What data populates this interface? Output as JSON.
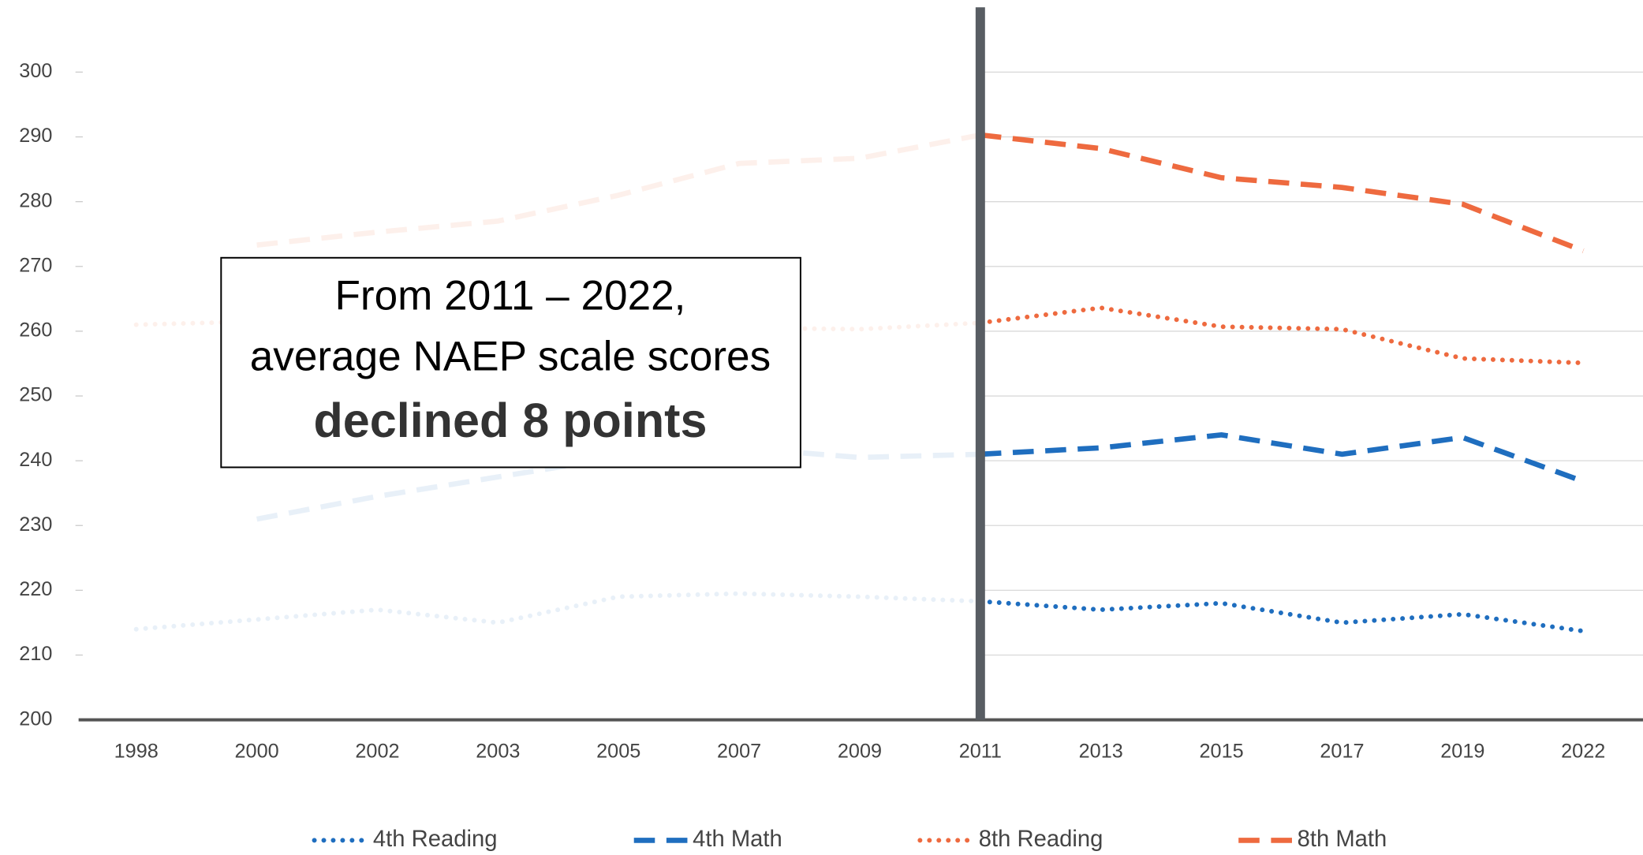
{
  "chart_data": {
    "type": "line",
    "categories": [
      "1998",
      "2000",
      "2002",
      "2003",
      "2005",
      "2007",
      "2009",
      "2011",
      "2013",
      "2015",
      "2017",
      "2019",
      "2022"
    ],
    "ylim": [
      200,
      310
    ],
    "yticks": [
      200,
      210,
      220,
      230,
      240,
      250,
      260,
      270,
      280,
      290,
      300
    ],
    "highlight_from": "2011",
    "series": [
      {
        "name": "4th Reading",
        "color": "#1f6ebf",
        "dash": "dotted",
        "values": [
          214,
          215.5,
          217,
          215,
          219,
          219.5,
          219,
          218.3,
          217,
          218,
          215,
          216.3,
          213.7
        ]
      },
      {
        "name": "4th Math",
        "color": "#1f6ebf",
        "dash": "dashed",
        "values": [
          null,
          231,
          234.5,
          237.5,
          240.5,
          242,
          240.5,
          241,
          242,
          244,
          241,
          243.6,
          236.8
        ]
      },
      {
        "name": "8th Reading",
        "color": "#ee6a3f",
        "dash": "dotted",
        "values": [
          261,
          261.5,
          263,
          262,
          261,
          260.5,
          260.3,
          261.3,
          263.6,
          260.7,
          260.3,
          255.8,
          255.1
        ]
      },
      {
        "name": "8th Math",
        "color": "#ee6a3f",
        "dash": "dashed",
        "values": [
          null,
          273.3,
          275.3,
          277,
          281,
          285.9,
          286.7,
          290.3,
          288.2,
          283.7,
          282.2,
          279.6,
          272.4
        ]
      }
    ],
    "annotation": {
      "lines": [
        "From 2011 – 2022,",
        "average NAEP scale scores"
      ],
      "emphasis": "declined 8 points",
      "emphasis_color": "#b5201e"
    }
  }
}
